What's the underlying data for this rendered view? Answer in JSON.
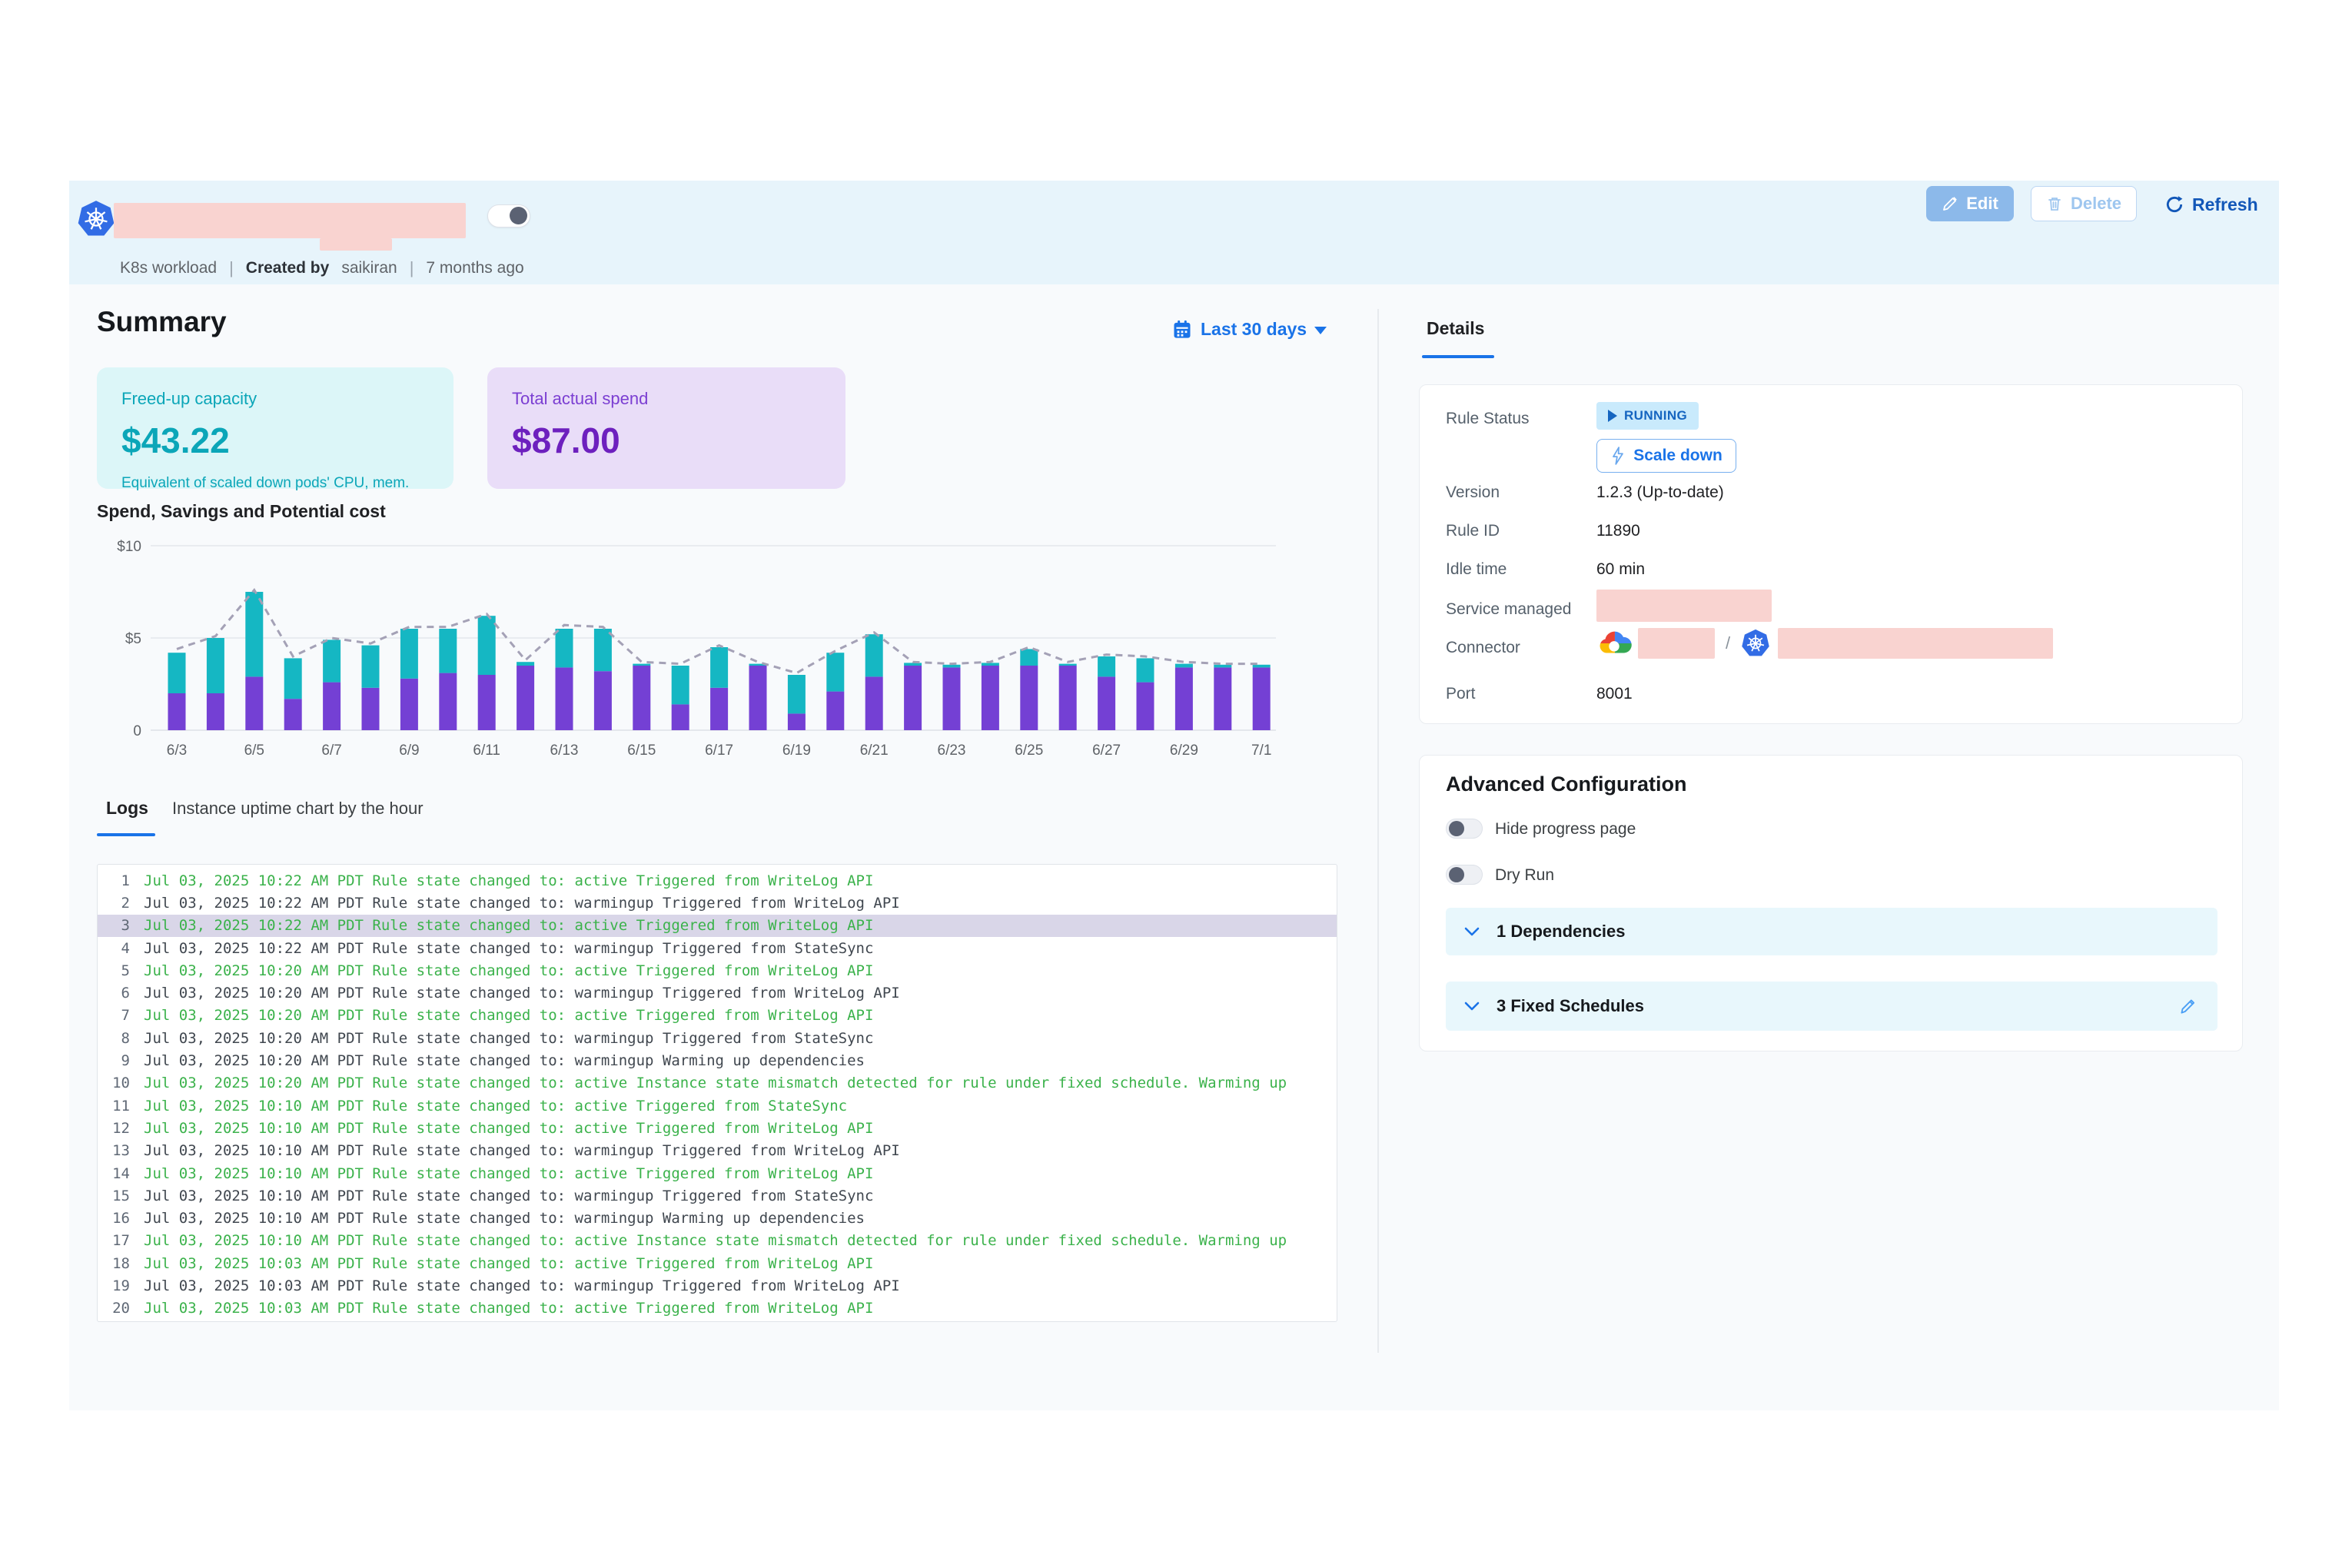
{
  "header": {
    "workload_type": "K8s workload",
    "created_by_label": "Created by",
    "created_by": "saikiran",
    "created_ago": "7 months ago",
    "edit_label": "Edit",
    "delete_label": "Delete",
    "refresh_label": "Refresh"
  },
  "summary": {
    "title": "Summary",
    "date_range": "Last 30 days",
    "cards": [
      {
        "label": "Freed-up capacity",
        "value": "$43.22",
        "desc": "Equivalent of scaled down pods' CPU, mem."
      },
      {
        "label": "Total actual spend",
        "value": "$87.00",
        "desc": ""
      }
    ]
  },
  "chart_data": {
    "type": "bar",
    "stacked": true,
    "title": "Spend, Savings and Potential cost",
    "xlabel": "",
    "ylabel": "",
    "ylim": [
      0,
      10
    ],
    "y_ticks": [
      {
        "v": 10,
        "label": "$10"
      },
      {
        "v": 5,
        "label": "$5"
      },
      {
        "v": 0,
        "label": "0"
      }
    ],
    "x": [
      "6/3",
      "6/4",
      "6/5",
      "6/6",
      "6/7",
      "6/8",
      "6/9",
      "6/10",
      "6/11",
      "6/12",
      "6/13",
      "6/14",
      "6/15",
      "6/16",
      "6/17",
      "6/18",
      "6/19",
      "6/20",
      "6/21",
      "6/22",
      "6/23",
      "6/24",
      "6/25",
      "6/26",
      "6/27",
      "6/28",
      "6/29",
      "6/30",
      "7/1"
    ],
    "x_tick_every": 2,
    "series": [
      {
        "name": "Spend",
        "color": "#7440d4",
        "values": [
          2.0,
          2.0,
          2.9,
          1.7,
          2.6,
          2.3,
          2.8,
          3.1,
          3.0,
          3.5,
          3.4,
          3.2,
          3.5,
          1.4,
          2.3,
          3.5,
          0.9,
          2.1,
          2.9,
          3.5,
          3.4,
          3.5,
          3.5,
          3.5,
          2.9,
          2.6,
          3.4,
          3.4,
          3.4
        ]
      },
      {
        "name": "Savings",
        "color": "#15b7c3",
        "values": [
          2.2,
          3.0,
          4.6,
          2.2,
          2.3,
          2.3,
          2.7,
          2.4,
          3.2,
          0.2,
          2.1,
          2.3,
          0.1,
          2.1,
          2.2,
          0.1,
          2.1,
          2.1,
          2.3,
          0.15,
          0.15,
          0.15,
          0.9,
          0.1,
          1.1,
          1.3,
          0.2,
          0.15,
          0.15
        ]
      },
      {
        "name": "Potential cost",
        "type": "dashed-line",
        "color": "#a4a1b6",
        "values": [
          4.4,
          5.1,
          7.6,
          4.0,
          5.0,
          4.7,
          5.6,
          5.6,
          6.3,
          3.8,
          5.7,
          5.6,
          3.7,
          3.6,
          4.6,
          3.7,
          3.1,
          4.3,
          5.3,
          3.7,
          3.6,
          3.7,
          4.5,
          3.7,
          4.1,
          4.0,
          3.7,
          3.6,
          3.6
        ]
      }
    ],
    "grid": true,
    "legend": false
  },
  "logs": {
    "tabs": [
      "Logs",
      "Instance uptime chart by the hour"
    ],
    "active_tab": "Logs",
    "rows": [
      {
        "n": 1,
        "ts": "Jul 03, 2025 10:22 AM PDT",
        "msg": "Rule state changed to: active Triggered from WriteLog API",
        "state": "active"
      },
      {
        "n": 2,
        "ts": "Jul 03, 2025 10:22 AM PDT",
        "msg": "Rule state changed to: warmingup  Triggered from WriteLog API",
        "state": "warmingup"
      },
      {
        "n": 3,
        "ts": "Jul 03, 2025 10:22 AM PDT",
        "msg": "Rule state changed to: active Triggered from WriteLog API",
        "state": "active",
        "highlighted": true
      },
      {
        "n": 4,
        "ts": "Jul 03, 2025 10:22 AM PDT",
        "msg": "Rule state changed to: warmingup  Triggered from StateSync",
        "state": "warmingup"
      },
      {
        "n": 5,
        "ts": "Jul 03, 2025 10:20 AM PDT",
        "msg": "Rule state changed to: active Triggered from WriteLog API",
        "state": "active"
      },
      {
        "n": 6,
        "ts": "Jul 03, 2025 10:20 AM PDT",
        "msg": "Rule state changed to: warmingup  Triggered from WriteLog API",
        "state": "warmingup"
      },
      {
        "n": 7,
        "ts": "Jul 03, 2025 10:20 AM PDT",
        "msg": "Rule state changed to: active Triggered from WriteLog API",
        "state": "active"
      },
      {
        "n": 8,
        "ts": "Jul 03, 2025 10:20 AM PDT",
        "msg": "Rule state changed to: warmingup  Triggered from StateSync",
        "state": "warmingup"
      },
      {
        "n": 9,
        "ts": "Jul 03, 2025 10:20 AM PDT",
        "msg": "Rule state changed to: warmingup  Warming up dependencies",
        "state": "warmingup"
      },
      {
        "n": 10,
        "ts": "Jul 03, 2025 10:20 AM PDT",
        "msg": "Rule state changed to: active Instance state mismatch detected for rule under fixed schedule. Warming up",
        "state": "active"
      },
      {
        "n": 11,
        "ts": "Jul 03, 2025 10:10 AM PDT",
        "msg": "Rule state changed to: active Triggered from StateSync",
        "state": "active"
      },
      {
        "n": 12,
        "ts": "Jul 03, 2025 10:10 AM PDT",
        "msg": "Rule state changed to: active Triggered from WriteLog API",
        "state": "active"
      },
      {
        "n": 13,
        "ts": "Jul 03, 2025 10:10 AM PDT",
        "msg": "Rule state changed to: warmingup  Triggered from WriteLog API",
        "state": "warmingup"
      },
      {
        "n": 14,
        "ts": "Jul 03, 2025 10:10 AM PDT",
        "msg": "Rule state changed to: active Triggered from WriteLog API",
        "state": "active"
      },
      {
        "n": 15,
        "ts": "Jul 03, 2025 10:10 AM PDT",
        "msg": "Rule state changed to: warmingup  Triggered from StateSync",
        "state": "warmingup"
      },
      {
        "n": 16,
        "ts": "Jul 03, 2025 10:10 AM PDT",
        "msg": "Rule state changed to: warmingup  Warming up dependencies",
        "state": "warmingup"
      },
      {
        "n": 17,
        "ts": "Jul 03, 2025 10:10 AM PDT",
        "msg": "Rule state changed to: active Instance state mismatch detected for rule under fixed schedule. Warming up",
        "state": "active"
      },
      {
        "n": 18,
        "ts": "Jul 03, 2025 10:03 AM PDT",
        "msg": "Rule state changed to: active Triggered from WriteLog API",
        "state": "active"
      },
      {
        "n": 19,
        "ts": "Jul 03, 2025 10:03 AM PDT",
        "msg": "Rule state changed to: warmingup  Triggered from WriteLog API",
        "state": "warmingup"
      },
      {
        "n": 20,
        "ts": "Jul 03, 2025 10:03 AM PDT",
        "msg": "Rule state changed to: active Triggered from WriteLog API",
        "state": "active"
      }
    ]
  },
  "details": {
    "tab": "Details",
    "rule_status_label": "Rule Status",
    "rule_status": "RUNNING",
    "scale_down_label": "Scale down",
    "rows": [
      {
        "label": "Version",
        "value": "1.2.3 (Up-to-date)"
      },
      {
        "label": "Rule ID",
        "value": "11890"
      },
      {
        "label": "Idle time",
        "value": "60 min"
      }
    ],
    "service_managed_label": "Service managed",
    "connector_label": "Connector",
    "connector_separator": "/",
    "port_label": "Port",
    "port_value": "8001"
  },
  "advanced": {
    "title": "Advanced Configuration",
    "toggles": [
      "Hide progress page",
      "Dry Run"
    ],
    "sections": [
      {
        "label": "1 Dependencies"
      },
      {
        "label": "3 Fixed Schedules",
        "editable": true
      }
    ]
  },
  "colors": {
    "accent_blue": "#1a73e8",
    "bar_spend_purple": "#7440d4",
    "bar_savings_teal": "#15b7c3",
    "potential_dashed": "#a4a1b6",
    "log_green": "#3bb24b",
    "redaction_pink": "#f9d3d0",
    "capacity_card_bg": "#dcf6f8",
    "spend_card_bg": "#e9ddf8",
    "header_band_bg": "#e7f4fb"
  }
}
